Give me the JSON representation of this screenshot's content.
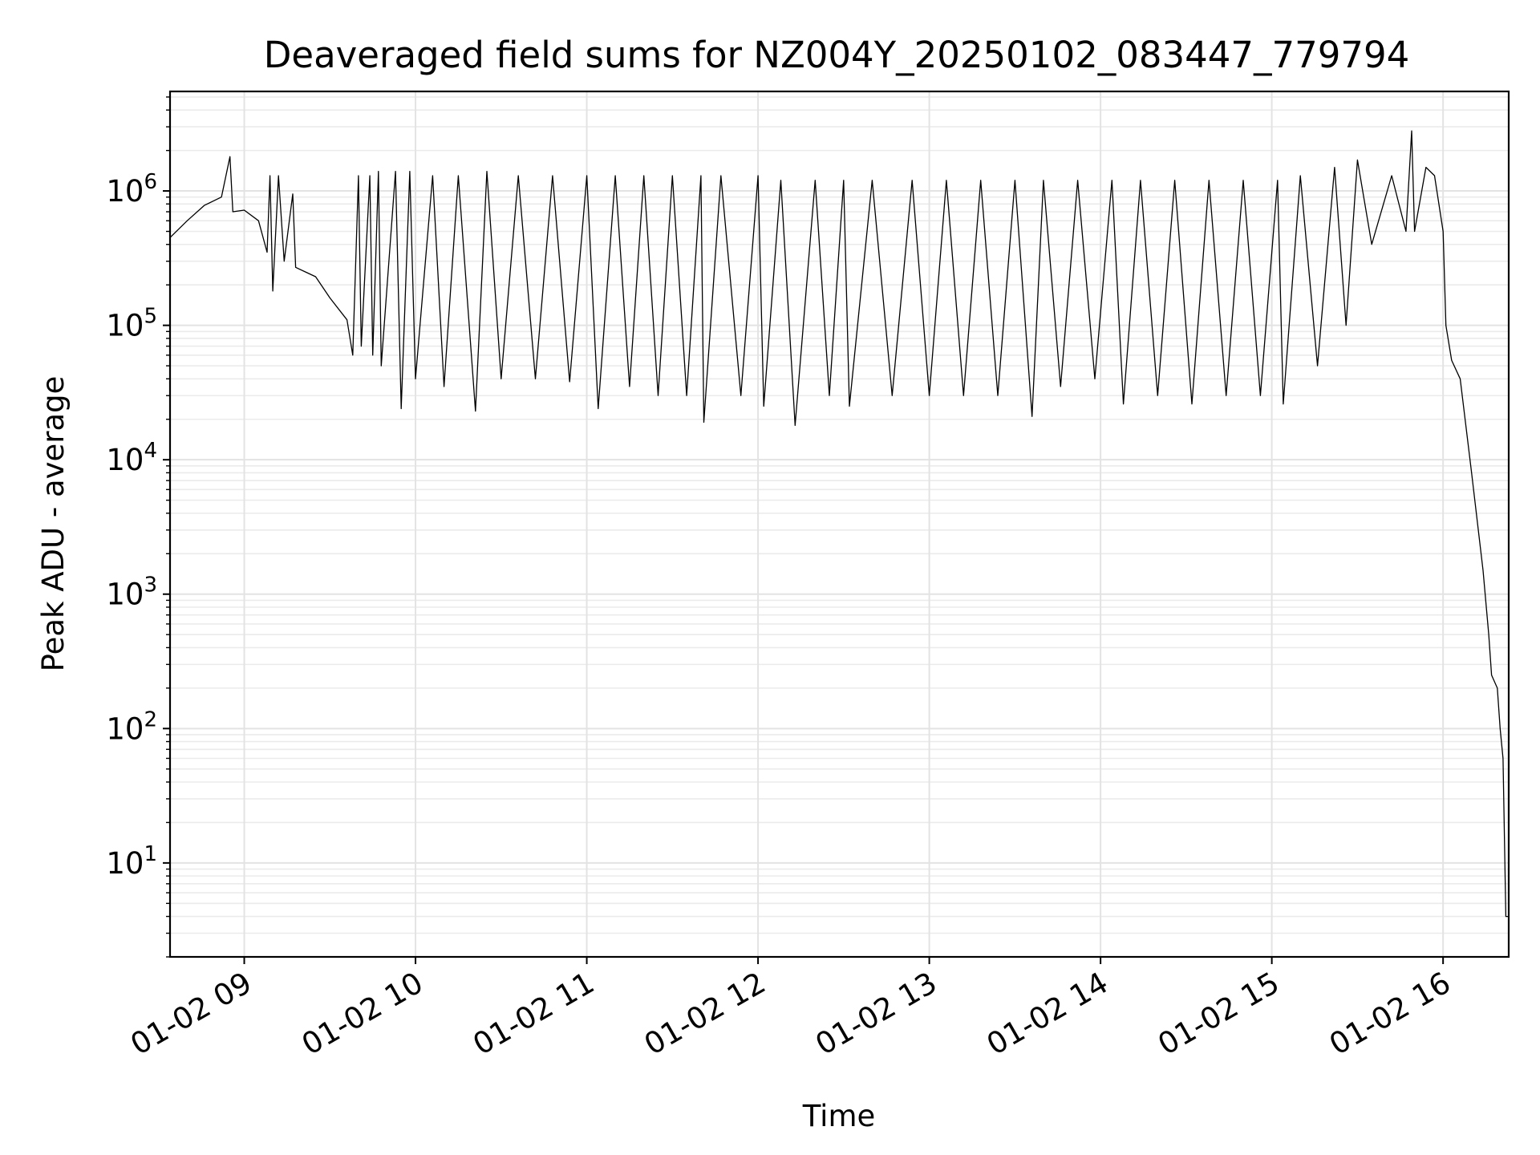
{
  "chart_data": {
    "type": "line",
    "title": "Deaveraged field sums for NZ004Y_20250102_083447_779794",
    "xlabel": "Time",
    "ylabel": "Peak ADU - average",
    "y_scale": "log",
    "grid": true,
    "xlim": [
      "2025-01-02 08:34",
      "2025-01-02 16:23"
    ],
    "ylim": [
      2,
      5500000
    ],
    "x_ticks": [
      {
        "t": "2025-01-02 09:00",
        "label": "01-02 09"
      },
      {
        "t": "2025-01-02 10:00",
        "label": "01-02 10"
      },
      {
        "t": "2025-01-02 11:00",
        "label": "01-02 11"
      },
      {
        "t": "2025-01-02 12:00",
        "label": "01-02 12"
      },
      {
        "t": "2025-01-02 13:00",
        "label": "01-02 13"
      },
      {
        "t": "2025-01-02 14:00",
        "label": "01-02 14"
      },
      {
        "t": "2025-01-02 15:00",
        "label": "01-02 15"
      },
      {
        "t": "2025-01-02 16:00",
        "label": "01-02 16"
      }
    ],
    "y_ticks": [
      {
        "value": 10,
        "base": "10",
        "exp": "1"
      },
      {
        "value": 100,
        "base": "10",
        "exp": "2"
      },
      {
        "value": 1000,
        "base": "10",
        "exp": "3"
      },
      {
        "value": 10000,
        "base": "10",
        "exp": "4"
      },
      {
        "value": 100000,
        "base": "10",
        "exp": "5"
      },
      {
        "value": 1000000,
        "base": "10",
        "exp": "6"
      }
    ],
    "series": [
      {
        "color": "#000000",
        "points": [
          [
            "2025-01-02 08:34",
            450000
          ],
          [
            "2025-01-02 08:40",
            600000
          ],
          [
            "2025-01-02 08:46",
            780000
          ],
          [
            "2025-01-02 08:52",
            900000
          ],
          [
            "2025-01-02 08:55",
            1800000
          ],
          [
            "2025-01-02 08:56",
            700000
          ],
          [
            "2025-01-02 09:00",
            720000
          ],
          [
            "2025-01-02 09:05",
            600000
          ],
          [
            "2025-01-02 09:08",
            350000
          ],
          [
            "2025-01-02 09:09",
            1300000
          ],
          [
            "2025-01-02 09:10",
            180000
          ],
          [
            "2025-01-02 09:12",
            1300000
          ],
          [
            "2025-01-02 09:14",
            300000
          ],
          [
            "2025-01-02 09:17",
            950000
          ],
          [
            "2025-01-02 09:18",
            270000
          ],
          [
            "2025-01-02 09:25",
            230000
          ],
          [
            "2025-01-02 09:30",
            160000
          ],
          [
            "2025-01-02 09:36",
            110000
          ],
          [
            "2025-01-02 09:38",
            60000
          ],
          [
            "2025-01-02 09:40",
            1300000
          ],
          [
            "2025-01-02 09:41",
            70000
          ],
          [
            "2025-01-02 09:44",
            1300000
          ],
          [
            "2025-01-02 09:45",
            60000
          ],
          [
            "2025-01-02 09:47",
            1400000
          ],
          [
            "2025-01-02 09:48",
            50000
          ],
          [
            "2025-01-02 09:53",
            1400000
          ],
          [
            "2025-01-02 09:55",
            24000
          ],
          [
            "2025-01-02 09:58",
            1400000
          ],
          [
            "2025-01-02 10:00",
            40000
          ],
          [
            "2025-01-02 10:06",
            1300000
          ],
          [
            "2025-01-02 10:10",
            35000
          ],
          [
            "2025-01-02 10:15",
            1300000
          ],
          [
            "2025-01-02 10:21",
            23000
          ],
          [
            "2025-01-02 10:25",
            1400000
          ],
          [
            "2025-01-02 10:30",
            40000
          ],
          [
            "2025-01-02 10:36",
            1300000
          ],
          [
            "2025-01-02 10:42",
            40000
          ],
          [
            "2025-01-02 10:48",
            1300000
          ],
          [
            "2025-01-02 10:54",
            38000
          ],
          [
            "2025-01-02 11:00",
            1300000
          ],
          [
            "2025-01-02 11:04",
            24000
          ],
          [
            "2025-01-02 11:10",
            1300000
          ],
          [
            "2025-01-02 11:15",
            35000
          ],
          [
            "2025-01-02 11:20",
            1300000
          ],
          [
            "2025-01-02 11:25",
            30000
          ],
          [
            "2025-01-02 11:30",
            1300000
          ],
          [
            "2025-01-02 11:35",
            30000
          ],
          [
            "2025-01-02 11:40",
            1300000
          ],
          [
            "2025-01-02 11:41",
            19000
          ],
          [
            "2025-01-02 11:47",
            1300000
          ],
          [
            "2025-01-02 11:54",
            30000
          ],
          [
            "2025-01-02 12:00",
            1300000
          ],
          [
            "2025-01-02 12:02",
            25000
          ],
          [
            "2025-01-02 12:08",
            1200000
          ],
          [
            "2025-01-02 12:13",
            18000
          ],
          [
            "2025-01-02 12:20",
            1200000
          ],
          [
            "2025-01-02 12:25",
            30000
          ],
          [
            "2025-01-02 12:30",
            1200000
          ],
          [
            "2025-01-02 12:32",
            25000
          ],
          [
            "2025-01-02 12:40",
            1200000
          ],
          [
            "2025-01-02 12:47",
            30000
          ],
          [
            "2025-01-02 12:54",
            1200000
          ],
          [
            "2025-01-02 13:00",
            30000
          ],
          [
            "2025-01-02 13:06",
            1200000
          ],
          [
            "2025-01-02 13:12",
            30000
          ],
          [
            "2025-01-02 13:18",
            1200000
          ],
          [
            "2025-01-02 13:24",
            30000
          ],
          [
            "2025-01-02 13:30",
            1200000
          ],
          [
            "2025-01-02 13:36",
            21000
          ],
          [
            "2025-01-02 13:40",
            1200000
          ],
          [
            "2025-01-02 13:46",
            35000
          ],
          [
            "2025-01-02 13:52",
            1200000
          ],
          [
            "2025-01-02 13:58",
            40000
          ],
          [
            "2025-01-02 14:04",
            1200000
          ],
          [
            "2025-01-02 14:08",
            26000
          ],
          [
            "2025-01-02 14:14",
            1200000
          ],
          [
            "2025-01-02 14:20",
            30000
          ],
          [
            "2025-01-02 14:26",
            1200000
          ],
          [
            "2025-01-02 14:32",
            26000
          ],
          [
            "2025-01-02 14:38",
            1200000
          ],
          [
            "2025-01-02 14:44",
            30000
          ],
          [
            "2025-01-02 14:50",
            1200000
          ],
          [
            "2025-01-02 14:56",
            30000
          ],
          [
            "2025-01-02 15:02",
            1200000
          ],
          [
            "2025-01-02 15:04",
            26000
          ],
          [
            "2025-01-02 15:10",
            1300000
          ],
          [
            "2025-01-02 15:16",
            50000
          ],
          [
            "2025-01-02 15:22",
            1500000
          ],
          [
            "2025-01-02 15:26",
            100000
          ],
          [
            "2025-01-02 15:30",
            1700000
          ],
          [
            "2025-01-02 15:35",
            400000
          ],
          [
            "2025-01-02 15:42",
            1300000
          ],
          [
            "2025-01-02 15:47",
            500000
          ],
          [
            "2025-01-02 15:49",
            2800000
          ],
          [
            "2025-01-02 15:50",
            500000
          ],
          [
            "2025-01-02 15:54",
            1500000
          ],
          [
            "2025-01-02 15:57",
            1300000
          ],
          [
            "2025-01-02 16:00",
            500000
          ],
          [
            "2025-01-02 16:01",
            100000
          ],
          [
            "2025-01-02 16:03",
            55000
          ],
          [
            "2025-01-02 16:06",
            40000
          ],
          [
            "2025-01-02 16:10",
            8000
          ],
          [
            "2025-01-02 16:14",
            1500
          ],
          [
            "2025-01-02 16:16",
            500
          ],
          [
            "2025-01-02 16:17",
            250
          ],
          [
            "2025-01-02 16:19",
            200
          ],
          [
            "2025-01-02 16:20",
            100
          ],
          [
            "2025-01-02 16:21",
            60
          ],
          [
            "2025-01-02 16:22",
            4
          ],
          [
            "2025-01-02 16:23",
            4
          ]
        ]
      }
    ]
  }
}
